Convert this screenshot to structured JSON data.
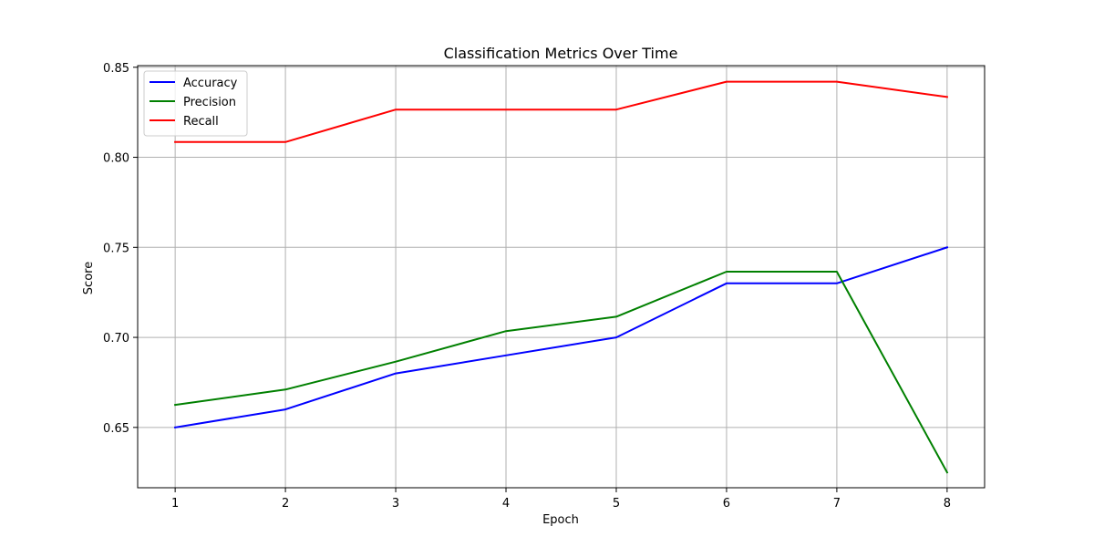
{
  "chart_data": {
    "type": "line",
    "title": "Classification Metrics Over Time",
    "xlabel": "Epoch",
    "ylabel": "Score",
    "x": [
      1,
      2,
      3,
      4,
      5,
      6,
      7,
      8
    ],
    "xticks": [
      "1",
      "2",
      "3",
      "4",
      "5",
      "6",
      "7",
      "8"
    ],
    "xlim": [
      0.66,
      8.34
    ],
    "ylim": [
      0.6165,
      0.8509
    ],
    "yticks": [
      "0.65",
      "0.70",
      "0.75",
      "0.80",
      "0.85"
    ],
    "grid": true,
    "legend_position": "top-left",
    "series": [
      {
        "name": "Accuracy",
        "color": "#0000ff",
        "values": [
          0.65,
          0.66,
          0.68,
          0.69,
          0.7,
          0.73,
          0.73,
          0.75
        ]
      },
      {
        "name": "Precision",
        "color": "#008000",
        "values": [
          0.6625,
          0.671,
          0.6865,
          0.7035,
          0.7115,
          0.7365,
          0.7365,
          0.625
        ]
      },
      {
        "name": "Recall",
        "color": "#ff0000",
        "values": [
          0.8085,
          0.8085,
          0.8265,
          0.8265,
          0.8265,
          0.842,
          0.842,
          0.8335
        ]
      }
    ]
  }
}
